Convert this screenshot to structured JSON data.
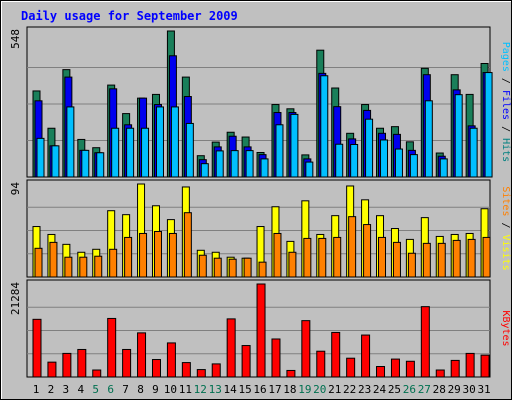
{
  "chart_data": {
    "type": "bar",
    "title": "Daily usage for September 2009",
    "categories": [
      "1",
      "2",
      "3",
      "4",
      "5",
      "6",
      "7",
      "8",
      "9",
      "10",
      "11",
      "12",
      "13",
      "14",
      "15",
      "16",
      "17",
      "18",
      "19",
      "20",
      "21",
      "22",
      "23",
      "24",
      "25",
      "26",
      "27",
      "28",
      "29",
      "30",
      "31"
    ],
    "weekend_days": [
      "5",
      "6",
      "12",
      "13",
      "19",
      "20",
      "26",
      "27"
    ],
    "panels": [
      {
        "id": "top",
        "max_label": "548",
        "ymax": 548,
        "labels": [
          {
            "text": "Pages",
            "color": "#00c0ff"
          },
          {
            "text": " / ",
            "color": "#000000"
          },
          {
            "text": "Files",
            "color": "#0000ff"
          },
          {
            "text": " / ",
            "color": "#000000"
          },
          {
            "text": "Hits",
            "color": "#008080"
          }
        ],
        "series": [
          {
            "name": "Hits",
            "color": "#1a7f5a",
            "values": [
              323,
              183,
              403,
              141,
              110,
              345,
              238,
              296,
              310,
              548,
              375,
              80,
              131,
              168,
              150,
              92,
              272,
              256,
              83,
              476,
              334,
              164,
              272,
              183,
              189,
              132,
              408,
              90,
              384,
              310,
              426
            ]
          },
          {
            "name": "Files",
            "color": "#0000ee",
            "values": [
              286,
              117,
              375,
              100,
              91,
              331,
              196,
              296,
              272,
              455,
              302,
              65,
              113,
              153,
              113,
              84,
              242,
              242,
              68,
              389,
              264,
              143,
              250,
              164,
              160,
              100,
              384,
              78,
              327,
              192,
              392
            ]
          },
          {
            "name": "Pages",
            "color": "#00bfff",
            "values": [
              145,
              117,
              263,
              100,
              91,
              183,
              183,
              183,
              263,
              263,
              201,
              50,
              98,
              99,
              99,
              68,
              196,
              235,
              56,
              380,
              123,
              122,
              217,
              139,
              105,
              84,
              286,
              68,
              309,
              183,
              392
            ]
          }
        ]
      },
      {
        "id": "middle",
        "max_label": "94",
        "ymax": 94,
        "labels": [
          {
            "text": "Sites",
            "color": "#ff8000"
          },
          {
            "text": " / ",
            "color": "#000000"
          },
          {
            "text": "Visits",
            "color": "#ffff00"
          }
        ],
        "series": [
          {
            "name": "Visits",
            "color": "#ffff00",
            "values": [
              51,
              43,
              33,
              25,
              28,
              67,
              63,
              94,
              72,
              58,
              91,
              27,
              25,
              20,
              19,
              51,
              71,
              36,
              77,
              43,
              62,
              92,
              78,
              62,
              49,
              38,
              60,
              41,
              43,
              44,
              69
            ]
          },
          {
            "name": "Sites",
            "color": "#ff8000",
            "values": [
              29,
              35,
              20,
              20,
              21,
              28,
              40,
              44,
              46,
              44,
              65,
              22,
              19,
              18,
              19,
              15,
              44,
              25,
              39,
              39,
              40,
              61,
              53,
              40,
              35,
              24,
              34,
              34,
              37,
              38,
              40
            ]
          }
        ]
      },
      {
        "id": "bottom",
        "max_label": "21284",
        "ymax": 21284,
        "labels": [
          {
            "text": "KBytes",
            "color": "#ff0000"
          }
        ],
        "series": [
          {
            "name": "KBytes",
            "color": "#ff0000",
            "values": [
              13200,
              3400,
              5400,
              6300,
              1600,
              13400,
              6300,
              10100,
              4000,
              7800,
              3300,
              1700,
              3000,
              13300,
              7200,
              21284,
              8700,
              1500,
              12900,
              5900,
              10200,
              4300,
              9600,
              2400,
              4100,
              3600,
              16100,
              1600,
              3800,
              5400,
              5000
            ]
          }
        ]
      }
    ]
  }
}
